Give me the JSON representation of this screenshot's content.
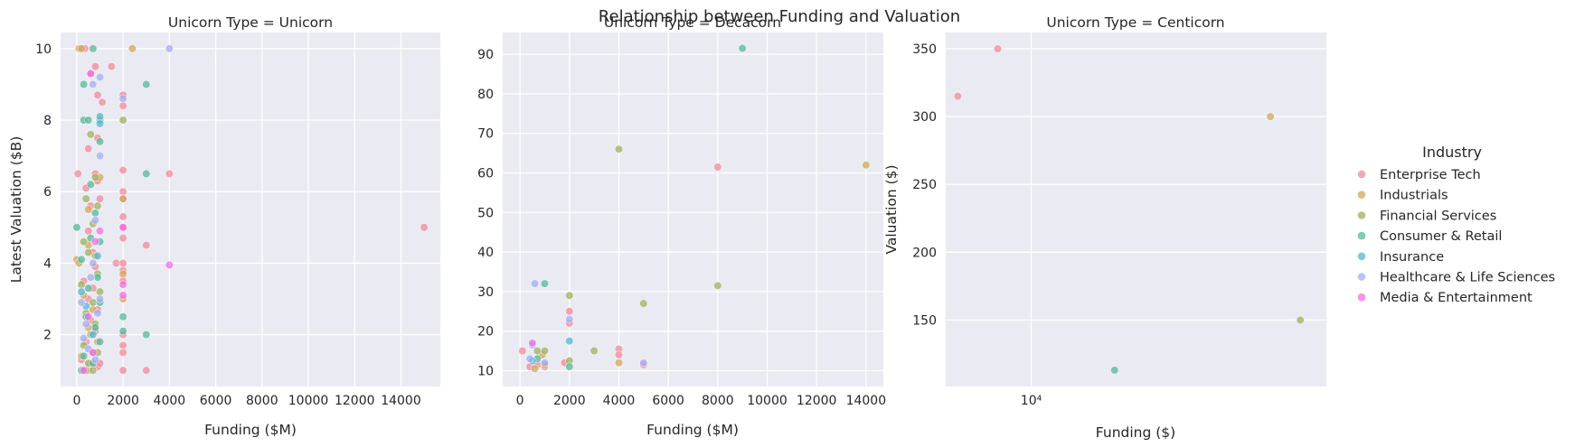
{
  "figure": {
    "title": "Relationship between Funding and Valuation",
    "legend": {
      "title": "Industry",
      "placement": "right",
      "entries": [
        {
          "label": "Enterprise Tech",
          "color": "#f08a9a"
        },
        {
          "label": "Industrials",
          "color": "#d1a65e"
        },
        {
          "label": "Financial Services",
          "color": "#9eb25e"
        },
        {
          "label": "Consumer & Retail",
          "color": "#55b79a"
        },
        {
          "label": "Insurance",
          "color": "#58b5cf"
        },
        {
          "label": "Healthcare & Life Sciences",
          "color": "#a3aef0"
        },
        {
          "label": "Media & Entertainment",
          "color": "#f06fe3"
        }
      ]
    }
  },
  "chart_data": [
    {
      "type": "scatter",
      "title": "Unicorn Type = Unicorn",
      "xlabel": "Funding ($M)",
      "ylabel": "Latest Valuation ($B)",
      "xscale": "linear",
      "xlim": [
        -700,
        15700
      ],
      "ylim": [
        0.55,
        10.45
      ],
      "xticks": [
        0,
        2000,
        4000,
        6000,
        8000,
        10000,
        12000,
        14000
      ],
      "xtick_labels": [
        "0",
        "2000",
        "4000",
        "6000",
        "8000",
        "10000",
        "12000",
        "14000"
      ],
      "yticks": [
        2,
        4,
        6,
        8,
        10
      ],
      "ytick_labels": [
        "2",
        "4",
        "6",
        "8",
        "10"
      ],
      "grid": true,
      "series": [
        {
          "name": "Enterprise Tech",
          "points": [
            [
              50,
              6.5
            ],
            [
              350,
              10
            ],
            [
              600,
              9.3
            ],
            [
              800,
              9.5
            ],
            [
              1500,
              9.5
            ],
            [
              900,
              8.7
            ],
            [
              1100,
              8.5
            ],
            [
              2000,
              8.7
            ],
            [
              2000,
              8.4
            ],
            [
              500,
              7.2
            ],
            [
              900,
              7.5
            ],
            [
              2000,
              6.6
            ],
            [
              900,
              6.3
            ],
            [
              1000,
              5.8
            ],
            [
              2000,
              6.0
            ],
            [
              2000,
              5.8
            ],
            [
              2000,
              5.3
            ],
            [
              2000,
              5.0
            ],
            [
              2000,
              4.7
            ],
            [
              4000,
              6.5
            ],
            [
              15000,
              5.0
            ],
            [
              3000,
              4.5
            ],
            [
              1700,
              4.0
            ],
            [
              2000,
              4.0
            ],
            [
              2000,
              3.8
            ],
            [
              2000,
              3.5
            ],
            [
              2000,
              2.0
            ],
            [
              2000,
              1.7
            ],
            [
              2000,
              1.5
            ],
            [
              2000,
              1.0
            ],
            [
              3000,
              1.0
            ],
            [
              500,
              4.9
            ],
            [
              700,
              4.3
            ],
            [
              800,
              3.9
            ],
            [
              300,
              3.5
            ],
            [
              700,
              3.3
            ],
            [
              500,
              3.0
            ],
            [
              900,
              2.7
            ],
            [
              600,
              2.4
            ],
            [
              800,
              2.1
            ],
            [
              400,
              1.8
            ],
            [
              700,
              1.5
            ],
            [
              200,
              1.3
            ],
            [
              900,
              1.1
            ],
            [
              500,
              1.0
            ],
            [
              1000,
              1.2
            ],
            [
              600,
              5.6
            ],
            [
              800,
              6.5
            ],
            [
              400,
              6.1
            ]
          ]
        },
        {
          "name": "Industrials",
          "points": [
            [
              100,
              10
            ],
            [
              200,
              10
            ],
            [
              2400,
              10
            ],
            [
              0,
              4.1
            ],
            [
              100,
              4.0
            ],
            [
              500,
              4.5
            ],
            [
              800,
              4.2
            ],
            [
              300,
              3.1
            ],
            [
              700,
              2.7
            ],
            [
              500,
              2.2
            ],
            [
              900,
              1.8
            ],
            [
              200,
              1.4
            ],
            [
              600,
              1.2
            ],
            [
              400,
              1.0
            ],
            [
              2000,
              5.8
            ],
            [
              2000,
              3.7
            ],
            [
              2000,
              3.0
            ],
            [
              1000,
              6.4
            ],
            [
              500,
              5.5
            ]
          ]
        },
        {
          "name": "Financial Services",
          "points": [
            [
              2000,
              8.0
            ],
            [
              600,
              7.6
            ],
            [
              800,
              6.4
            ],
            [
              900,
              5.6
            ],
            [
              700,
              5.1
            ],
            [
              300,
              4.6
            ],
            [
              500,
              4.3
            ],
            [
              900,
              3.7
            ],
            [
              200,
              3.4
            ],
            [
              700,
              2.9
            ],
            [
              400,
              2.6
            ],
            [
              800,
              2.3
            ],
            [
              600,
              2.0
            ],
            [
              300,
              1.7
            ],
            [
              900,
              1.5
            ],
            [
              500,
              1.2
            ],
            [
              700,
              1.0
            ],
            [
              1000,
              3.2
            ],
            [
              400,
              5.8
            ]
          ]
        },
        {
          "name": "Consumer & Retail",
          "points": [
            [
              300,
              9.0
            ],
            [
              700,
              10
            ],
            [
              3000,
              9.0
            ],
            [
              300,
              8.0
            ],
            [
              500,
              8.0
            ],
            [
              1000,
              8.0
            ],
            [
              1000,
              7.4
            ],
            [
              3000,
              6.5
            ],
            [
              0,
              5.0
            ],
            [
              800,
              5.4
            ],
            [
              600,
              4.7
            ],
            [
              1000,
              4.6
            ],
            [
              200,
              4.1
            ],
            [
              900,
              3.6
            ],
            [
              500,
              3.3
            ],
            [
              1000,
              2.9
            ],
            [
              400,
              2.5
            ],
            [
              800,
              2.2
            ],
            [
              1000,
              1.8
            ],
            [
              300,
              1.4
            ],
            [
              700,
              1.2
            ],
            [
              2000,
              2.5
            ],
            [
              2000,
              2.1
            ],
            [
              3000,
              2.0
            ],
            [
              200,
              1.0
            ],
            [
              600,
              6.2
            ]
          ]
        },
        {
          "name": "Insurance",
          "points": [
            [
              1000,
              8.1
            ],
            [
              1000,
              7.9
            ],
            [
              400,
              2.8
            ],
            [
              700,
              2.0
            ],
            [
              200,
              3.2
            ],
            [
              900,
              4.2
            ]
          ]
        },
        {
          "name": "Healthcare & Life Sciences",
          "points": [
            [
              4000,
              10
            ],
            [
              1000,
              9.2
            ],
            [
              700,
              9.0
            ],
            [
              2000,
              8.6
            ],
            [
              1000,
              7.0
            ],
            [
              800,
              5.2
            ],
            [
              200,
              2.9
            ],
            [
              600,
              3.6
            ],
            [
              400,
              2.3
            ],
            [
              900,
              2.6
            ],
            [
              500,
              1.6
            ],
            [
              800,
              1.3
            ],
            [
              700,
              4.0
            ],
            [
              300,
              1.9
            ],
            [
              1000,
              3.0
            ]
          ]
        },
        {
          "name": "Media & Entertainment",
          "points": [
            [
              600,
              9.3
            ],
            [
              4000,
              3.95
            ],
            [
              2000,
              3.4
            ],
            [
              2000,
              3.1
            ],
            [
              2000,
              5.0
            ],
            [
              800,
              4.6
            ],
            [
              500,
              2.5
            ],
            [
              300,
              1.0
            ],
            [
              1000,
              4.9
            ],
            [
              700,
              1.5
            ]
          ]
        }
      ]
    },
    {
      "type": "scatter",
      "title": "Unicorn Type = Decacorn",
      "xlabel": "Funding ($M)",
      "ylabel": "",
      "xscale": "linear",
      "xlim": [
        -700,
        14700
      ],
      "ylim": [
        6.0,
        95.5
      ],
      "xticks": [
        0,
        2000,
        4000,
        6000,
        8000,
        10000,
        12000,
        14000
      ],
      "xtick_labels": [
        "0",
        "2000",
        "4000",
        "6000",
        "8000",
        "10000",
        "12000",
        "14000"
      ],
      "yticks": [
        10,
        20,
        30,
        40,
        50,
        60,
        70,
        80,
        90
      ],
      "ytick_labels": [
        "10",
        "20",
        "30",
        "40",
        "50",
        "60",
        "70",
        "80",
        "90"
      ],
      "grid": true,
      "series": [
        {
          "name": "Enterprise Tech",
          "points": [
            [
              100,
              15
            ],
            [
              400,
              11
            ],
            [
              700,
              11.5
            ],
            [
              1000,
              11
            ],
            [
              1800,
              12
            ],
            [
              2000,
              25
            ],
            [
              2000,
              22
            ],
            [
              4000,
              15.5
            ],
            [
              4000,
              14
            ],
            [
              8000,
              61.5
            ],
            [
              5000,
              11.5
            ]
          ]
        },
        {
          "name": "Industrials",
          "points": [
            [
              600,
              10.5
            ],
            [
              900,
              14
            ],
            [
              4000,
              12
            ],
            [
              14000,
              62
            ],
            [
              1000,
              11.5
            ]
          ]
        },
        {
          "name": "Financial Services",
          "points": [
            [
              700,
              15
            ],
            [
              1000,
              15
            ],
            [
              2000,
              29
            ],
            [
              2000,
              12.5
            ],
            [
              3000,
              15
            ],
            [
              4000,
              66
            ],
            [
              5000,
              27
            ],
            [
              8000,
              31.5
            ]
          ]
        },
        {
          "name": "Consumer & Retail",
          "points": [
            [
              1000,
              32
            ],
            [
              9000,
              91.5
            ],
            [
              700,
              13
            ],
            [
              2000,
              11
            ]
          ]
        },
        {
          "name": "Insurance",
          "points": [
            [
              2000,
              17.5
            ],
            [
              500,
              12.5
            ]
          ]
        },
        {
          "name": "Healthcare & Life Sciences",
          "points": [
            [
              600,
              32
            ],
            [
              500,
              16.5
            ],
            [
              2000,
              23
            ],
            [
              1000,
              12
            ],
            [
              5000,
              12
            ],
            [
              400,
              13
            ]
          ]
        },
        {
          "name": "Media & Entertainment",
          "points": [
            [
              500,
              17
            ]
          ]
        }
      ]
    },
    {
      "type": "scatter",
      "title": "Unicorn Type = Centicorn",
      "xlabel": "Funding ($)",
      "ylabel": "Valuation ($)",
      "xscale": "log",
      "xlim": [
        6600,
        42000
      ],
      "ylim": [
        101,
        362
      ],
      "xticks": [
        10000
      ],
      "xtick_labels": [
        "10⁴"
      ],
      "yticks": [
        150,
        200,
        250,
        300,
        350
      ],
      "ytick_labels": [
        "150",
        "200",
        "250",
        "300",
        "350"
      ],
      "grid": true,
      "series": [
        {
          "name": "Enterprise Tech",
          "points": [
            [
              7000,
              315
            ],
            [
              8500,
              350
            ]
          ]
        },
        {
          "name": "Industrials",
          "points": [
            [
              32000,
              300
            ]
          ]
        },
        {
          "name": "Financial Services",
          "points": [
            [
              37000,
              150
            ]
          ]
        },
        {
          "name": "Consumer & Retail",
          "points": [
            [
              15000,
              113
            ]
          ]
        }
      ]
    }
  ]
}
